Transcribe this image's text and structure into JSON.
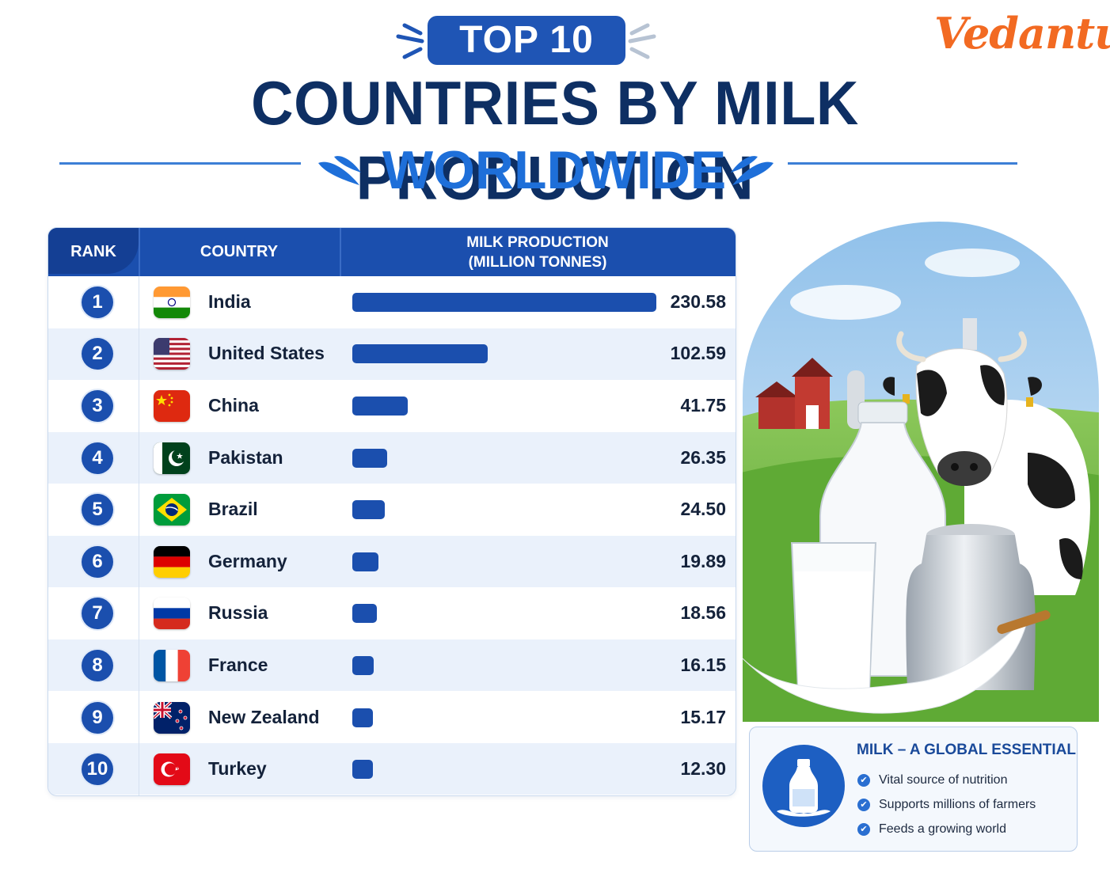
{
  "header": {
    "badge": "TOP 10",
    "title": "COUNTRIES BY MILK PRODUCTION",
    "subtitle": "WORLDWIDE",
    "brand": "Vedantu"
  },
  "table": {
    "col_rank": "RANK",
    "col_country": "COUNTRY",
    "col_production_line1": "MILK PRODUCTION",
    "col_production_line2": "(MILLION TONNES)"
  },
  "chart_data": {
    "type": "bar",
    "title": "COUNTRIES BY MILK PRODUCTION",
    "ylabel": "MILK PRODUCTION (MILLION TONNES)",
    "orientation": "horizontal",
    "categories": [
      "India",
      "United States",
      "China",
      "Pakistan",
      "Brazil",
      "Germany",
      "Russia",
      "France",
      "New Zealand",
      "Turkey"
    ],
    "ranks": [
      "1",
      "2",
      "3",
      "4",
      "5",
      "6",
      "7",
      "8",
      "9",
      "10"
    ],
    "values": [
      230.58,
      102.59,
      41.75,
      26.35,
      24.5,
      19.89,
      18.56,
      16.15,
      15.17,
      12.3
    ],
    "value_labels": [
      "230.58",
      "102.59",
      "41.75",
      "26.35",
      "24.50",
      "19.89",
      "18.56",
      "16.15",
      "15.17",
      "12.30"
    ],
    "flags": [
      "india-flag",
      "usa-flag",
      "china-flag",
      "pakistan-flag",
      "brazil-flag",
      "germany-flag",
      "russia-flag",
      "france-flag",
      "new-zealand-flag",
      "turkey-flag"
    ],
    "bar_color": "#1b4fae"
  },
  "info": {
    "title": "MILK – A GLOBAL ESSENTIAL",
    "items": [
      "Vital source of nutrition",
      "Supports millions of farmers",
      "Feeds a growing world"
    ]
  },
  "colors": {
    "primary": "#1b4fae",
    "title": "#0e2f63",
    "accent": "#1e6fd9",
    "brand": "#f26a22"
  }
}
